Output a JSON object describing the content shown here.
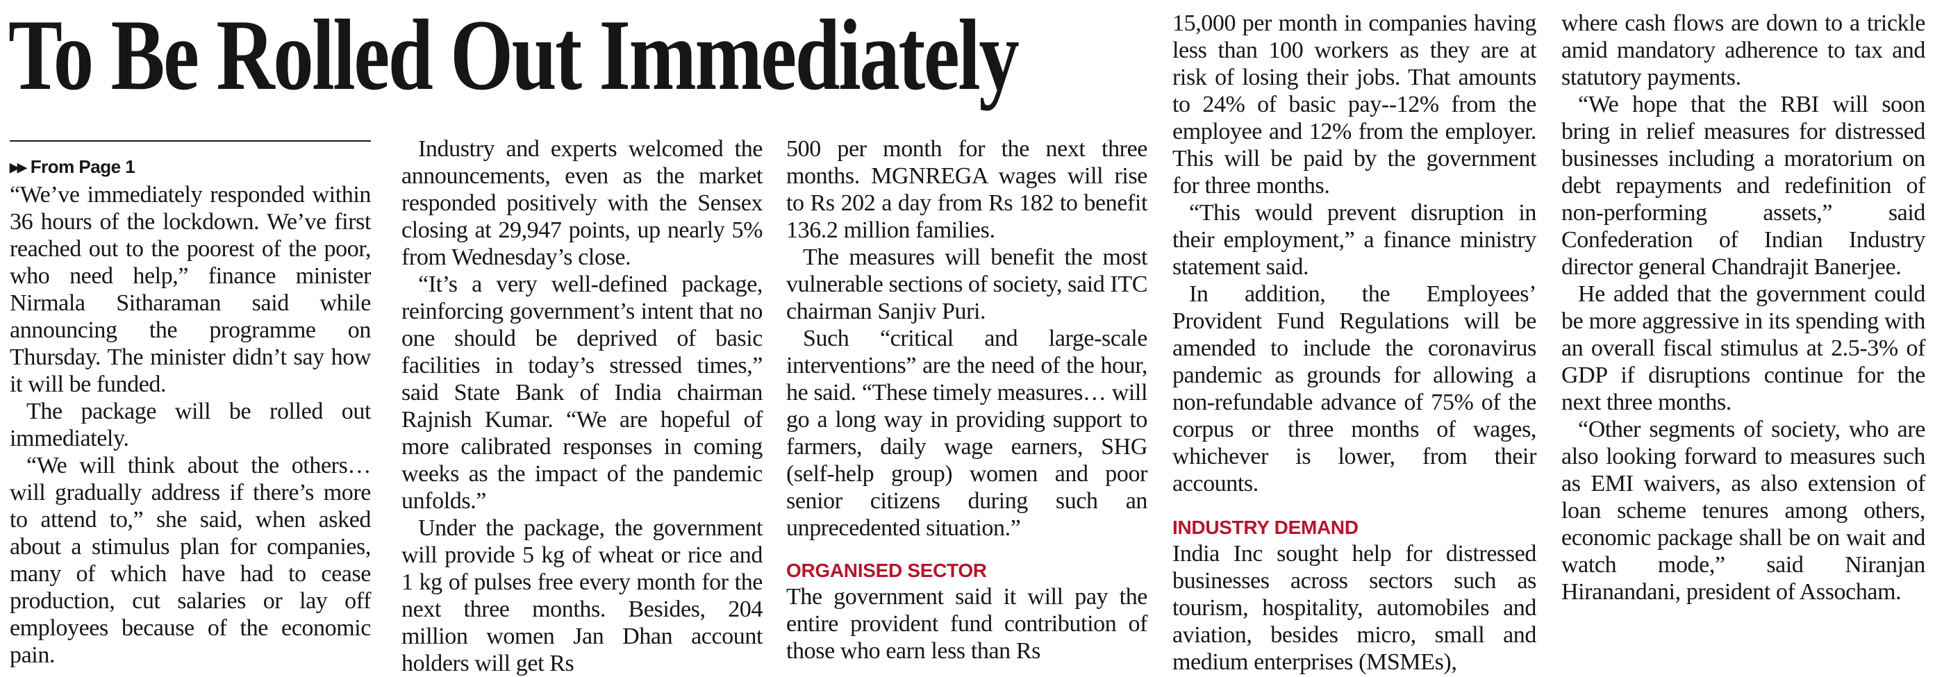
{
  "headline": "To Be Rolled Out Immediately",
  "kicker": {
    "arrows": "▶▶",
    "text": "From Page 1"
  },
  "columns": [
    {
      "paragraphs": [
        "“We’ve immediately responded within 36 hours of the lockdown. We’ve first reached out to the poorest of the poor, who need help,” finance minister Nirmala Sitharaman said while announcing the programme on Thursday. The minister didn’t say how it will be funded.",
        "The package will be rolled out immediately.",
        "“We will think about the others… will gradually address if there’s more to attend to,” she said, when asked about a stimulus plan for companies, many of which have had to cease production, cut salaries or lay off employees because of the economic pain."
      ]
    },
    {
      "paragraphs": [
        "Industry and experts welcomed the announcements, even as the market responded positively with the Sensex closing at 29,947 points, up nearly 5% from Wednesday’s close.",
        "“It’s a very well-defined package, reinforcing government’s intent that no one should be deprived of basic facilities in today’s stressed times,” said State Bank of India chairman Rajnish Kumar. “We are hopeful of more calibrated responses in coming weeks as the impact of the pandemic unfolds.”",
        "Under the package, the government will provide 5 kg of wheat or rice and 1 kg of pulses free every month for the next three months. Besides, 204 million women Jan Dhan account holders will get Rs"
      ]
    },
    {
      "paragraphs": [
        "500 per month for the next three months. MGNREGA wages will rise to Rs 202 a day from Rs 182 to benefit 136.2 million families.",
        "The measures will benefit the most vulnerable sections of society, said ITC chairman Sanjiv Puri.",
        "Such “critical and large-scale interventions” are the need of the hour, he said. “These timely measures… will go a long way in providing support to farmers, daily wage earners, SHG (self-help group) women and poor senior citizens during such an unprecedented situation.”"
      ],
      "subhead": "ORGANISED SECTOR",
      "after_subhead": "The government said it will pay the entire provident fund contribution of those who earn less than Rs"
    },
    {
      "paragraphs": [
        "15,000 per month in companies having less than 100 workers as they are at risk of losing their jobs. That amounts to 24% of basic pay--12% from the employee and 12% from the employer. This will be paid by the government for three months.",
        "“This would prevent disruption in their employment,” a finance ministry statement said.",
        "In addition, the Employees’ Provident Fund Regulations will be amended to include the coronavirus pandemic as grounds for allowing a non-refundable advance of 75% of the corpus or three months of wages, whichever is lower, from their accounts."
      ],
      "subhead": "INDUSTRY DEMAND",
      "after_subhead": "India Inc sought help for distressed businesses across sectors such as tourism, hospitality, automobiles and aviation, besides micro, small and medium enterprises (MSMEs),"
    },
    {
      "paragraphs": [
        "where cash flows are down to a trickle amid mandatory adherence to tax and statutory payments.",
        "“We hope that the RBI will soon bring in relief measures for distressed businesses including a moratorium on debt repayments and redefinition of non-performing assets,” said Confederation of Indian Industry director general Chandrajit Banerjee.",
        "He added that the government could be more aggressive in its spending with an overall fiscal stimulus at 2.5-3% of GDP if disruptions continue for the next three months.",
        "“Other segments of society, who are also looking forward to measures such as EMI waivers, as also extension of loan scheme tenures among others, economic package shall be on wait and watch mode,” said Niranjan Hiranandani, president of Assocham."
      ]
    }
  ]
}
